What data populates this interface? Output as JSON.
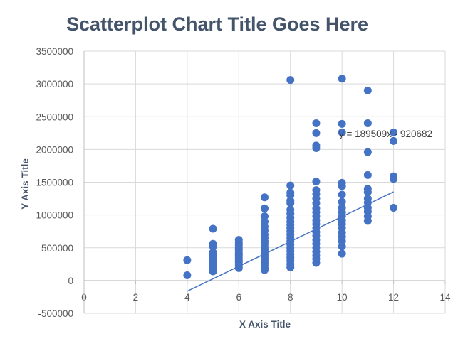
{
  "chart_data": {
    "type": "scatter",
    "title": "Scatterplot Chart Title Goes Here",
    "xlabel": "X Axis Title",
    "ylabel": "Y Axis Title",
    "xlim": [
      0,
      14
    ],
    "ylim": [
      -500000,
      3500000
    ],
    "x_ticks": [
      0,
      2,
      4,
      6,
      8,
      10,
      12,
      14
    ],
    "y_ticks": [
      -500000,
      0,
      500000,
      1000000,
      1500000,
      2000000,
      2500000,
      3000000,
      3500000
    ],
    "grid": true,
    "legend": "none",
    "colors": {
      "marker": "#4472c4",
      "trendline": "#4472c4",
      "grid": "#d9d9d9"
    },
    "trendline": {
      "equation": "y = 189509x - 920682",
      "slope": 189509,
      "intercept": -920682,
      "x_range": [
        4,
        12
      ]
    },
    "points": [
      [
        4,
        310000
      ],
      [
        4,
        80000
      ],
      [
        5,
        790000
      ],
      [
        5,
        560000
      ],
      [
        5,
        520000
      ],
      [
        5,
        430000
      ],
      [
        5,
        380000
      ],
      [
        5,
        330000
      ],
      [
        5,
        280000
      ],
      [
        5,
        240000
      ],
      [
        5,
        190000
      ],
      [
        5,
        140000
      ],
      [
        6,
        620000
      ],
      [
        6,
        580000
      ],
      [
        6,
        540000
      ],
      [
        6,
        500000
      ],
      [
        6,
        460000
      ],
      [
        6,
        420000
      ],
      [
        6,
        390000
      ],
      [
        6,
        350000
      ],
      [
        6,
        310000
      ],
      [
        6,
        280000
      ],
      [
        6,
        250000
      ],
      [
        6,
        220000
      ],
      [
        6,
        190000
      ],
      [
        7,
        1270000
      ],
      [
        7,
        1100000
      ],
      [
        7,
        980000
      ],
      [
        7,
        900000
      ],
      [
        7,
        820000
      ],
      [
        7,
        760000
      ],
      [
        7,
        700000
      ],
      [
        7,
        650000
      ],
      [
        7,
        600000
      ],
      [
        7,
        560000
      ],
      [
        7,
        510000
      ],
      [
        7,
        470000
      ],
      [
        7,
        430000
      ],
      [
        7,
        390000
      ],
      [
        7,
        350000
      ],
      [
        7,
        310000
      ],
      [
        7,
        270000
      ],
      [
        7,
        230000
      ],
      [
        7,
        190000
      ],
      [
        7,
        160000
      ],
      [
        8,
        3060000
      ],
      [
        8,
        1450000
      ],
      [
        8,
        1340000
      ],
      [
        8,
        1300000
      ],
      [
        8,
        1220000
      ],
      [
        8,
        1180000
      ],
      [
        8,
        1080000
      ],
      [
        8,
        1020000
      ],
      [
        8,
        960000
      ],
      [
        8,
        900000
      ],
      [
        8,
        850000
      ],
      [
        8,
        800000
      ],
      [
        8,
        750000
      ],
      [
        8,
        700000
      ],
      [
        8,
        650000
      ],
      [
        8,
        600000
      ],
      [
        8,
        550000
      ],
      [
        8,
        500000
      ],
      [
        8,
        450000
      ],
      [
        8,
        400000
      ],
      [
        8,
        350000
      ],
      [
        8,
        300000
      ],
      [
        8,
        250000
      ],
      [
        8,
        200000
      ],
      [
        9,
        2400000
      ],
      [
        9,
        2250000
      ],
      [
        9,
        2060000
      ],
      [
        9,
        2020000
      ],
      [
        9,
        1510000
      ],
      [
        9,
        1380000
      ],
      [
        9,
        1320000
      ],
      [
        9,
        1250000
      ],
      [
        9,
        1180000
      ],
      [
        9,
        1100000
      ],
      [
        9,
        1040000
      ],
      [
        9,
        980000
      ],
      [
        9,
        920000
      ],
      [
        9,
        860000
      ],
      [
        9,
        800000
      ],
      [
        9,
        740000
      ],
      [
        9,
        680000
      ],
      [
        9,
        620000
      ],
      [
        9,
        560000
      ],
      [
        9,
        500000
      ],
      [
        9,
        440000
      ],
      [
        9,
        380000
      ],
      [
        9,
        330000
      ],
      [
        9,
        270000
      ],
      [
        10,
        3080000
      ],
      [
        10,
        2390000
      ],
      [
        10,
        2260000
      ],
      [
        10,
        1490000
      ],
      [
        10,
        1440000
      ],
      [
        10,
        1310000
      ],
      [
        10,
        1200000
      ],
      [
        10,
        1110000
      ],
      [
        10,
        1040000
      ],
      [
        10,
        980000
      ],
      [
        10,
        920000
      ],
      [
        10,
        860000
      ],
      [
        10,
        800000
      ],
      [
        10,
        730000
      ],
      [
        10,
        670000
      ],
      [
        10,
        600000
      ],
      [
        10,
        520000
      ],
      [
        10,
        410000
      ],
      [
        11,
        2900000
      ],
      [
        11,
        2400000
      ],
      [
        11,
        1960000
      ],
      [
        11,
        1610000
      ],
      [
        11,
        1400000
      ],
      [
        11,
        1350000
      ],
      [
        11,
        1250000
      ],
      [
        11,
        1190000
      ],
      [
        11,
        1110000
      ],
      [
        11,
        1050000
      ],
      [
        11,
        980000
      ],
      [
        11,
        910000
      ],
      [
        12,
        2260000
      ],
      [
        12,
        2130000
      ],
      [
        12,
        1590000
      ],
      [
        12,
        1550000
      ],
      [
        12,
        1110000
      ]
    ]
  }
}
